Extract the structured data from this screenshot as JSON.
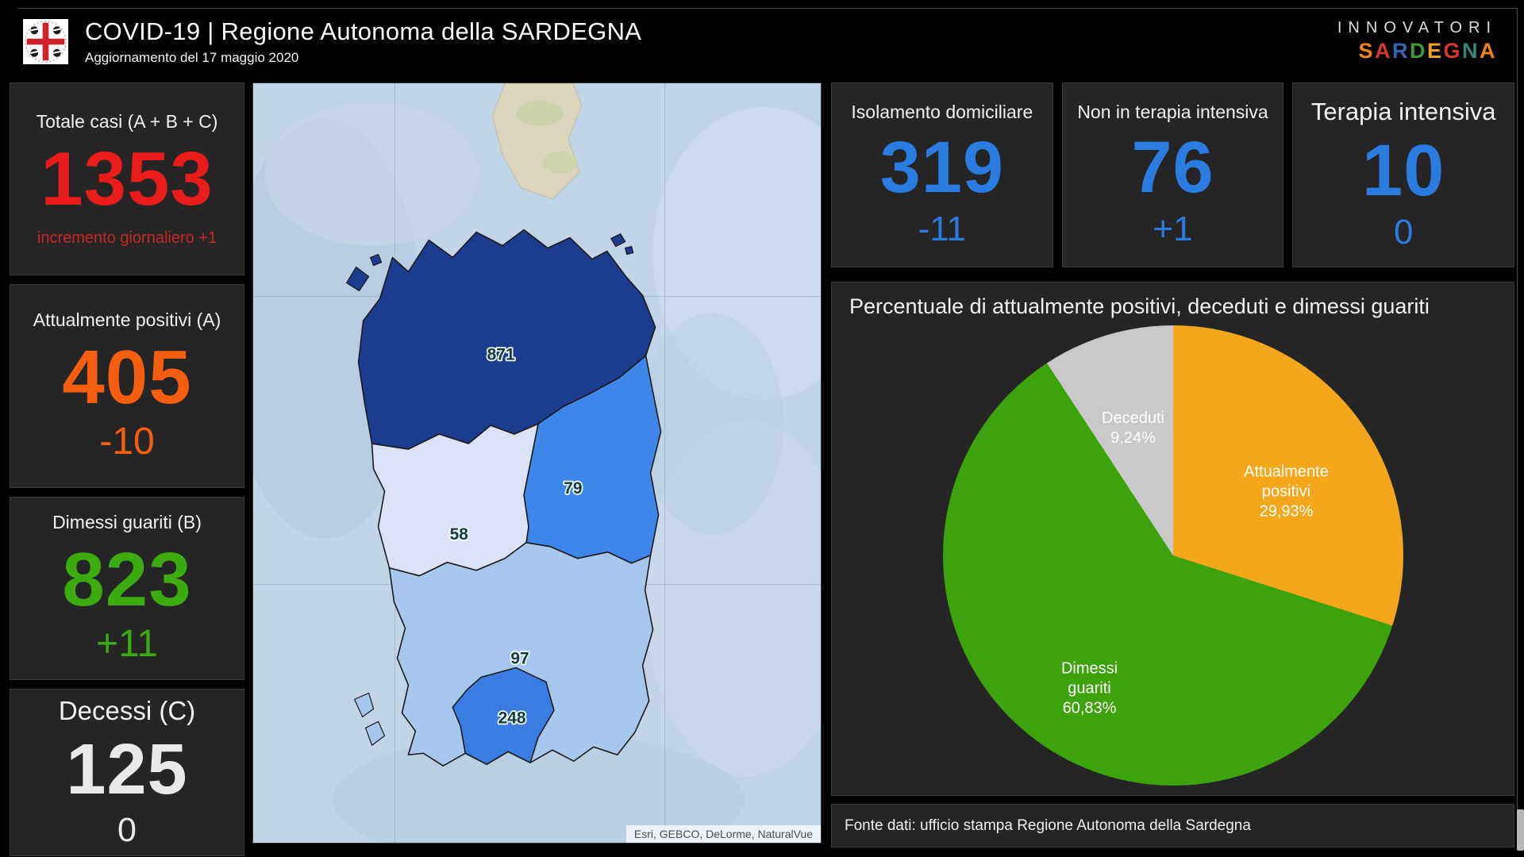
{
  "header": {
    "title": "COVID-19 | Regione Autonoma della SARDEGNA",
    "subtitle": "Aggiornamento del 17 maggio 2020",
    "logo_alt": "stemma-regione-sardegna",
    "brand_line1": "INNOVATORI",
    "brand_letters": [
      {
        "ch": "S",
        "color": "#f0821e"
      },
      {
        "ch": "A",
        "color": "#d8392c"
      },
      {
        "ch": "R",
        "color": "#3565b4"
      },
      {
        "ch": "D",
        "color": "#3f9b35"
      },
      {
        "ch": "E",
        "color": "#f0a11e"
      },
      {
        "ch": "G",
        "color": "#d8392c"
      },
      {
        "ch": "N",
        "color": "#35897a"
      },
      {
        "ch": "A",
        "color": "#f0821e"
      }
    ]
  },
  "left_stats": [
    {
      "title": "Totale casi (A + B + C)",
      "value": "1353",
      "delta": "incremento giornaliero +1",
      "color": "#ea1b1b"
    },
    {
      "title": "Attualmente positivi (A)",
      "value": "405",
      "delta": "-10",
      "color": "#f55e0e"
    },
    {
      "title": "Dimessi guariti (B)",
      "value": "823",
      "delta": "+11",
      "color": "#3cab10"
    },
    {
      "title": "Decessi (C)",
      "value": "125",
      "delta": "0",
      "color": "#e9e9e9"
    }
  ],
  "right_stats": [
    {
      "title": "Isolamento domiciliare",
      "value": "319",
      "delta": "-11",
      "color": "#2b7ce0"
    },
    {
      "title": "Non in terapia intensiva",
      "value": "76",
      "delta": "+1",
      "color": "#2b7ce0"
    },
    {
      "title": "Terapia intensiva",
      "value": "10",
      "delta": "0",
      "color": "#2b7ce0"
    }
  ],
  "map": {
    "attribution": "Esri, GEBCO, DeLorme, NaturalVue",
    "regions": [
      {
        "value": "871",
        "fill": "#1c3d8f"
      },
      {
        "value": "79",
        "fill": "#3f86ea"
      },
      {
        "value": "58",
        "fill": "#dbe2f6"
      },
      {
        "value": "97",
        "fill": "#a6c8ef"
      },
      {
        "value": "248",
        "fill": "#3a7de2"
      }
    ]
  },
  "pie": {
    "title": "Percentuale di attualmente positivi, deceduti e dimessi guariti",
    "slices": [
      {
        "name": "Deceduti",
        "label_text": "Deceduti\n9,24%",
        "pct": "9,24%",
        "color": "#c9c9c9"
      },
      {
        "name": "Attualmente positivi",
        "label_text": "Attualmente\npositivi\n29,93%",
        "pct": "29,93%",
        "color": "#f5a71c"
      },
      {
        "name": "Dimessi guariti",
        "label_text": "Dimessi\nguariti\n60,83%",
        "pct": "60,83%",
        "color": "#3da30d"
      }
    ]
  },
  "footer": {
    "source": "Fonte dati: ufficio stampa Regione Autonoma della Sardegna"
  },
  "chart_data": [
    {
      "type": "pie",
      "title": "Percentuale di attualmente positivi, deceduti e dimessi guariti",
      "labels": [
        "Attualmente positivi",
        "Dimessi guariti",
        "Deceduti"
      ],
      "values": [
        29.93,
        60.83,
        9.24
      ],
      "colors": [
        "#f5a71c",
        "#3da30d",
        "#c9c9c9"
      ],
      "unit": "%",
      "start_angle_deg": 0,
      "direction": "clockwise",
      "legend_position": "none"
    },
    {
      "type": "map",
      "categories": [
        "871",
        "79",
        "58",
        "97",
        "248"
      ],
      "values": [
        871,
        79,
        58,
        97,
        248
      ]
    }
  ]
}
